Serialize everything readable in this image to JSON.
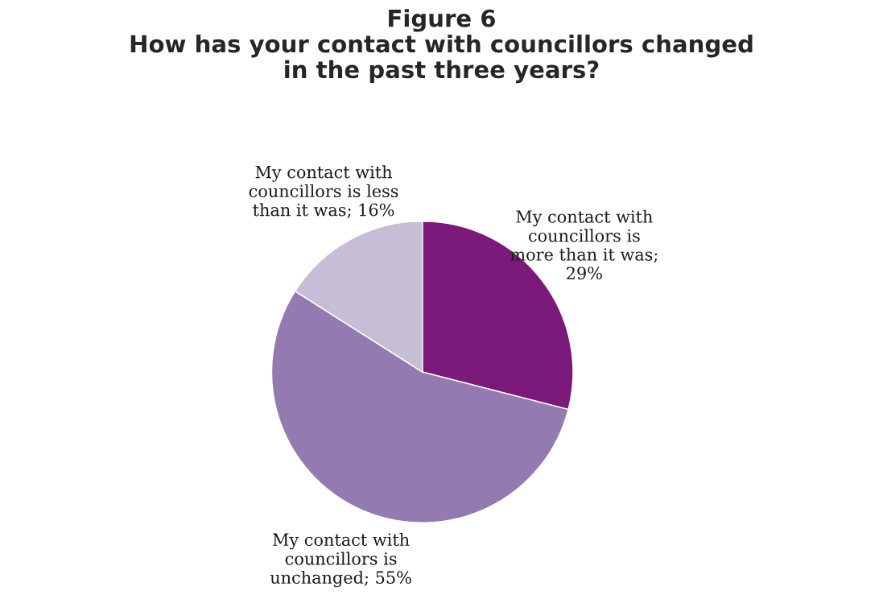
{
  "chart_data": {
    "type": "pie",
    "title": "Figure 6\nHow has your contact with councillors changed\nin the past three years?",
    "categories": [
      "My contact with\ncouncillors is\nmore than it was;\n29%",
      "My contact with\ncouncillors is\nunchanged; 55%",
      "My contact with\ncouncillors is less\nthan it was; 16%"
    ],
    "values": [
      29,
      55,
      16
    ],
    "colors": [
      "#7b1a7a",
      "#937bb1",
      "#c6bed6"
    ]
  }
}
